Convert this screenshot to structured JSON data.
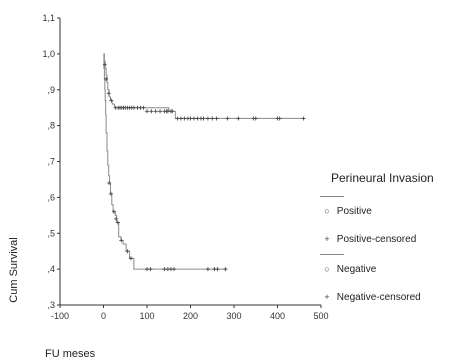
{
  "chart_data": {
    "type": "line",
    "subtype": "kaplan-meier",
    "xlabel": "FU meses",
    "ylabel": "Cum Survival",
    "xlim": [
      -100,
      500
    ],
    "ylim": [
      0.3,
      1.1
    ],
    "xticks": [
      "-100",
      "0",
      "100",
      "200",
      "300",
      "400",
      "500"
    ],
    "yticks": [
      "1,1",
      "1,0",
      ",9",
      ",8",
      ",7",
      ",6",
      ",5",
      ",4",
      ",3"
    ],
    "legend_title": "Perineural Invasion",
    "legend_entries": [
      {
        "label": "Positive",
        "marker": "circle"
      },
      {
        "label": "Positive-censored",
        "marker": "plus"
      },
      {
        "label": "Negative",
        "marker": "circle"
      },
      {
        "label": "Negative-censored",
        "marker": "plus"
      }
    ],
    "series": [
      {
        "name": "Negative",
        "steps": [
          [
            0,
            1.0
          ],
          [
            2,
            0.98
          ],
          [
            4,
            0.96
          ],
          [
            6,
            0.94
          ],
          [
            8,
            0.92
          ],
          [
            10,
            0.9
          ],
          [
            13,
            0.88
          ],
          [
            16,
            0.87
          ],
          [
            20,
            0.86
          ],
          [
            25,
            0.85
          ],
          [
            150,
            0.84
          ],
          [
            165,
            0.82
          ],
          [
            460,
            0.82
          ]
        ],
        "censored": [
          [
            3,
            0.97
          ],
          [
            6,
            0.93
          ],
          [
            12,
            0.89
          ],
          [
            18,
            0.87
          ],
          [
            28,
            0.85
          ],
          [
            34,
            0.85
          ],
          [
            38,
            0.85
          ],
          [
            42,
            0.85
          ],
          [
            46,
            0.85
          ],
          [
            50,
            0.85
          ],
          [
            55,
            0.85
          ],
          [
            60,
            0.85
          ],
          [
            65,
            0.85
          ],
          [
            70,
            0.85
          ],
          [
            78,
            0.85
          ],
          [
            85,
            0.85
          ],
          [
            92,
            0.85
          ],
          [
            100,
            0.84
          ],
          [
            110,
            0.84
          ],
          [
            120,
            0.84
          ],
          [
            130,
            0.84
          ],
          [
            140,
            0.84
          ],
          [
            145,
            0.84
          ],
          [
            148,
            0.84
          ],
          [
            155,
            0.84
          ],
          [
            158,
            0.84
          ],
          [
            170,
            0.82
          ],
          [
            178,
            0.82
          ],
          [
            186,
            0.82
          ],
          [
            194,
            0.82
          ],
          [
            200,
            0.82
          ],
          [
            208,
            0.82
          ],
          [
            216,
            0.82
          ],
          [
            224,
            0.82
          ],
          [
            230,
            0.82
          ],
          [
            240,
            0.82
          ],
          [
            250,
            0.82
          ],
          [
            260,
            0.82
          ],
          [
            285,
            0.82
          ],
          [
            310,
            0.82
          ],
          [
            345,
            0.82
          ],
          [
            350,
            0.82
          ],
          [
            400,
            0.82
          ],
          [
            405,
            0.82
          ],
          [
            460,
            0.82
          ]
        ]
      },
      {
        "name": "Positive",
        "steps": [
          [
            0,
            1.0
          ],
          [
            1,
            0.96
          ],
          [
            2,
            0.93
          ],
          [
            3,
            0.9
          ],
          [
            4,
            0.87
          ],
          [
            5,
            0.83
          ],
          [
            6,
            0.78
          ],
          [
            8,
            0.73
          ],
          [
            10,
            0.69
          ],
          [
            12,
            0.66
          ],
          [
            14,
            0.64
          ],
          [
            16,
            0.61
          ],
          [
            19,
            0.58
          ],
          [
            22,
            0.56
          ],
          [
            27,
            0.55
          ],
          [
            30,
            0.53
          ],
          [
            35,
            0.49
          ],
          [
            40,
            0.48
          ],
          [
            45,
            0.47
          ],
          [
            52,
            0.45
          ],
          [
            60,
            0.43
          ],
          [
            70,
            0.4
          ],
          [
            285,
            0.4
          ]
        ],
        "censored": [
          [
            13,
            0.64
          ],
          [
            17,
            0.61
          ],
          [
            24,
            0.56
          ],
          [
            29,
            0.54
          ],
          [
            33,
            0.53
          ],
          [
            41,
            0.48
          ],
          [
            55,
            0.45
          ],
          [
            63,
            0.43
          ],
          [
            100,
            0.4
          ],
          [
            108,
            0.4
          ],
          [
            140,
            0.4
          ],
          [
            148,
            0.4
          ],
          [
            155,
            0.4
          ],
          [
            162,
            0.4
          ],
          [
            240,
            0.4
          ],
          [
            255,
            0.4
          ],
          [
            262,
            0.4
          ],
          [
            280,
            0.4
          ]
        ]
      }
    ]
  },
  "colors": {
    "curve": "#8a8a8a",
    "censor_mark": "#4a4a4a",
    "axis": "#333333"
  }
}
